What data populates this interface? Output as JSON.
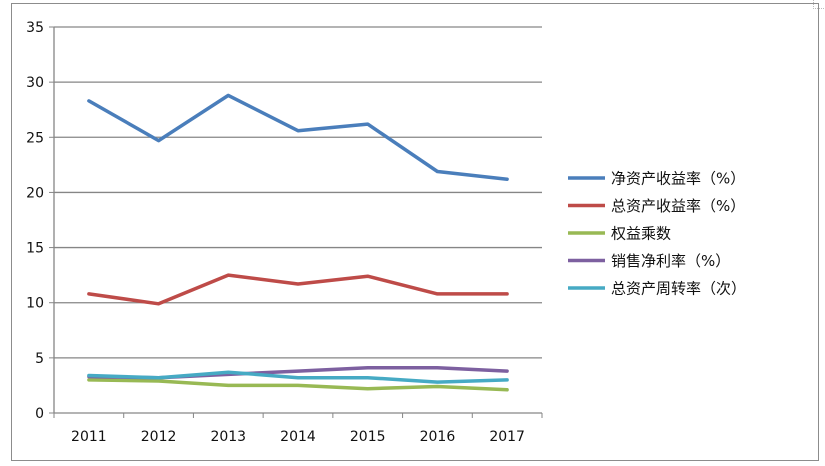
{
  "chart_data": {
    "type": "line",
    "title": "",
    "xlabel": "",
    "ylabel": "",
    "categories": [
      "2011",
      "2012",
      "2013",
      "2014",
      "2015",
      "2016",
      "2017"
    ],
    "ylim": [
      0,
      35
    ],
    "yticks": [
      0,
      5,
      10,
      15,
      20,
      25,
      30,
      35
    ],
    "grid": true,
    "legend_position": "right",
    "series": [
      {
        "name": "净资产收益率（%）",
        "color": "#4a7ebb",
        "values": [
          28.3,
          24.7,
          28.8,
          25.6,
          26.2,
          21.9,
          21.2
        ]
      },
      {
        "name": "总资产收益率（%）",
        "color": "#be4b48",
        "values": [
          10.8,
          9.9,
          12.5,
          11.7,
          12.4,
          10.8,
          10.8
        ]
      },
      {
        "name": "权益乘数",
        "color": "#98b954",
        "values": [
          3.0,
          2.9,
          2.5,
          2.5,
          2.2,
          2.4,
          2.1
        ]
      },
      {
        "name": "销售净利率（%）",
        "color": "#7d60a0",
        "values": [
          3.3,
          3.2,
          3.5,
          3.8,
          4.1,
          4.1,
          3.8
        ]
      },
      {
        "name": "总资产周转率（次）",
        "color": "#46aac4",
        "values": [
          3.4,
          3.2,
          3.7,
          3.2,
          3.2,
          2.8,
          3.0
        ]
      }
    ]
  }
}
